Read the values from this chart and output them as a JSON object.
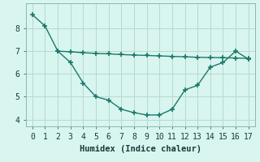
{
  "line1_x": [
    0,
    1,
    2,
    3,
    4,
    5,
    6,
    7,
    8,
    9,
    10,
    11,
    12,
    13,
    14,
    15,
    16,
    17
  ],
  "line1_y": [
    8.6,
    8.1,
    7.0,
    6.5,
    5.6,
    5.0,
    4.85,
    4.45,
    4.3,
    4.2,
    4.2,
    4.45,
    5.3,
    5.5,
    6.3,
    6.5,
    7.0,
    6.65
  ],
  "line2_x": [
    2,
    3,
    4,
    5,
    6,
    7,
    8,
    9,
    10,
    11,
    12,
    13,
    14,
    15,
    16,
    17
  ],
  "line2_y": [
    7.0,
    6.97,
    6.93,
    6.9,
    6.88,
    6.85,
    6.83,
    6.81,
    6.79,
    6.77,
    6.75,
    6.73,
    6.72,
    6.71,
    6.7,
    6.68
  ],
  "line_color": "#1a7a6a",
  "bg_color": "#d8f5f0",
  "grid_color": "#b8d8d0",
  "xlabel": "Humidex (Indice chaleur)",
  "xlim": [
    -0.5,
    17.5
  ],
  "ylim": [
    3.7,
    9.1
  ],
  "yticks": [
    4,
    5,
    6,
    7,
    8
  ],
  "xticks": [
    0,
    1,
    2,
    3,
    4,
    5,
    6,
    7,
    8,
    9,
    10,
    11,
    12,
    13,
    14,
    15,
    16,
    17
  ],
  "marker": "+",
  "markersize": 4,
  "linewidth": 1.0,
  "xlabel_fontsize": 7.5,
  "tick_fontsize": 7
}
